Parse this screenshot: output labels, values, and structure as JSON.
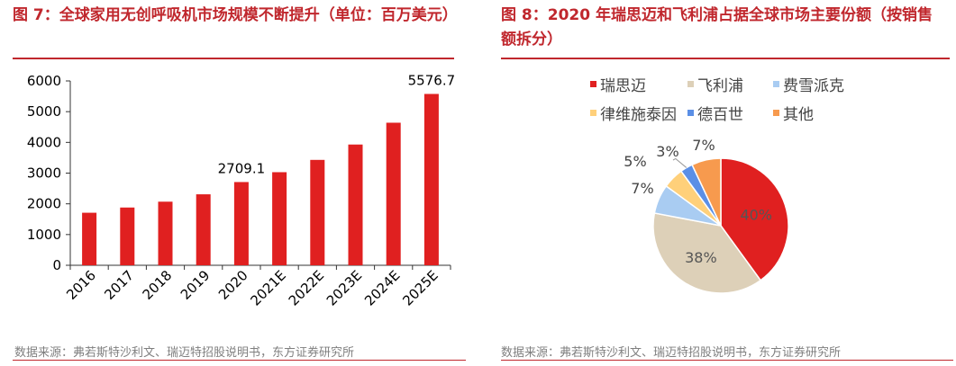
{
  "left": {
    "title": "图 7：全球家用无创呼吸机市场规模不断提升（单位：百万美元）",
    "source": "数据来源：弗若斯特沙利文、瑞迈特招股说明书，东方证券研究所"
  },
  "right": {
    "title": "图 8：2020 年瑞思迈和飞利浦占据全球市场主要份额（按销售额拆分）",
    "source": "数据来源：弗若斯特沙利文、瑞迈特招股说明书，东方证券研究所"
  },
  "chart_data": [
    {
      "type": "bar",
      "categories": [
        "2016",
        "2017",
        "2018",
        "2019",
        "2020",
        "2021E",
        "2022E",
        "2023E",
        "2024E",
        "2025E"
      ],
      "values": [
        1710,
        1880,
        2070,
        2310,
        2709.1,
        3030,
        3430,
        3930,
        4640,
        5576.7
      ],
      "data_labels": {
        "2020": "2709.1",
        "2025E": "5576.7"
      },
      "yticks": [
        "0",
        "1000",
        "2000",
        "3000",
        "4000",
        "5000",
        "6000"
      ],
      "ylim": [
        0,
        6000
      ],
      "color": "#e02020",
      "grid": false
    },
    {
      "type": "pie",
      "labels": [
        "瑞思迈",
        "飞利浦",
        "费雪派克",
        "律维施泰因",
        "德百世",
        "其他"
      ],
      "values": [
        40,
        38,
        7,
        5,
        3,
        7
      ],
      "value_labels": [
        "40%",
        "38%",
        "7%",
        "5%",
        "3%",
        "7%"
      ],
      "colors": [
        "#e02020",
        "#ddd0b8",
        "#a9ccf2",
        "#ffd07a",
        "#5b8fe6",
        "#f79a4e"
      ],
      "legend_position": "top"
    }
  ]
}
